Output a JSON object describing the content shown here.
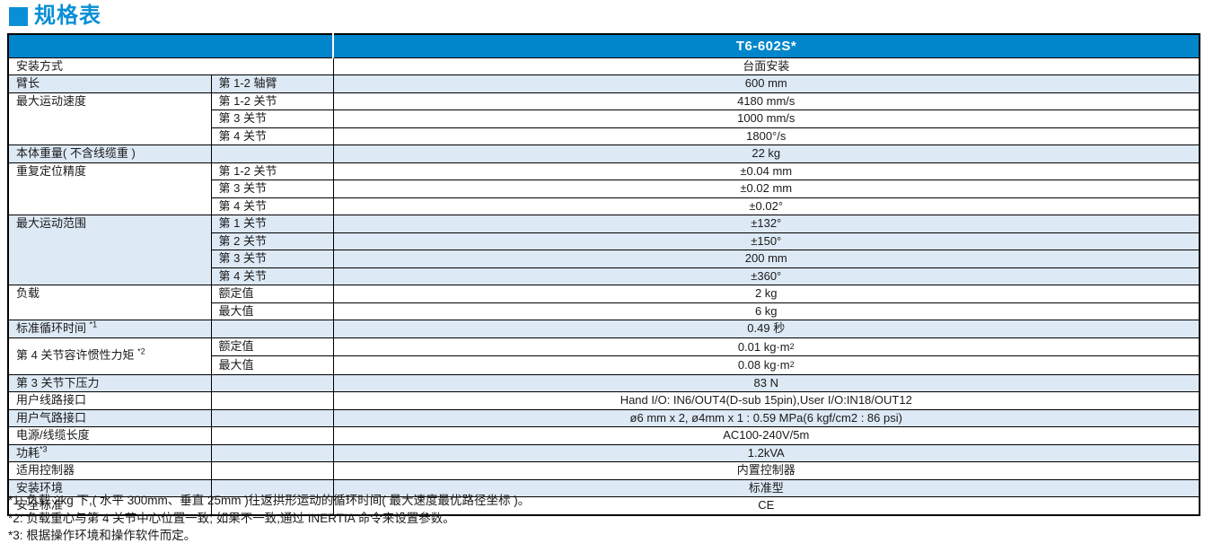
{
  "title": "规格表",
  "table": {
    "model": "T6-602S*",
    "rows": [
      {
        "label": "安装方式",
        "value": "台面安装"
      },
      {
        "label": "臂长",
        "sub": "第 1-2 轴臂",
        "value": "600 mm"
      },
      {
        "label": "最大运动速度",
        "sub": "第 1-2 关节",
        "value": "4180 mm/s"
      },
      {
        "sub": "第 3 关节",
        "value": "1000 mm/s"
      },
      {
        "sub": "第 4 关节",
        "value": "1800°/s"
      },
      {
        "label": "本体重量( 不含线缆重 )",
        "sub": "",
        "value": "22 kg"
      },
      {
        "label": "重复定位精度",
        "sub": "第 1-2 关节",
        "value": "±0.04 mm"
      },
      {
        "sub": "第 3 关节",
        "value": "±0.02 mm"
      },
      {
        "sub": "第 4 关节",
        "value": "±0.02°"
      },
      {
        "label": "最大运动范围",
        "sub": "第 1 关节",
        "value": "±132°"
      },
      {
        "sub": "第 2 关节",
        "value": "±150°"
      },
      {
        "sub": "第 3 关节",
        "value": "200 mm"
      },
      {
        "sub": "第 4 关节",
        "value": "±360°"
      },
      {
        "label": "负载",
        "sub": "额定值",
        "value": "2 kg"
      },
      {
        "sub": "最大值",
        "value": "6 kg"
      },
      {
        "label": "标准循环时间 ",
        "note": "*1",
        "sub": "",
        "value": "0.49 秒"
      },
      {
        "label": "第 4 关节容许惯性力矩 ",
        "note": "*2",
        "sub": "额定值",
        "value": "0.01 kg·m",
        "vsup": "2"
      },
      {
        "sub": "最大值",
        "value": "0.08 kg·m",
        "vsup": "2"
      },
      {
        "label": "第 3 关节下压力",
        "sub": "",
        "value": "83 N"
      },
      {
        "label": "用户线路接口",
        "sub": "",
        "value": "Hand I/O: IN6/OUT4(D-sub 15pin),User I/O:IN18/OUT12"
      },
      {
        "label": "用户气路接口",
        "sub": "",
        "value": "ø6 mm x 2, ø4mm x 1 : 0.59 MPa(6 kgf/cm2 : 86 psi)"
      },
      {
        "label": "电源/线缆长度",
        "sub": "",
        "value": "AC100-240V/5m"
      },
      {
        "label": "功耗",
        "note": "*3",
        "sub": "",
        "value": "1.2kVA"
      },
      {
        "label": "适用控制器",
        "sub": "",
        "value": "内置控制器"
      },
      {
        "label": "安装环境",
        "sub": "",
        "value": "标准型"
      },
      {
        "label": "安全标准",
        "sub": "",
        "value": "CE"
      }
    ]
  },
  "footnotes": [
    "*1: 负载 2kg 下,( 水平 300mm、垂直 25mm )往返拱形运动的循环时间( 最大速度最优路径坐标 )。",
    "*2: 负载重心与第 4 关节中心位置一致; 如果不一致,通过 INERTIA 命令来设置参数。",
    "*3: 根据操作环境和操作软件而定。"
  ],
  "colors": {
    "accent_blue": "#0a8fd6",
    "header_blue": "#0286cb",
    "row_light_blue": "#dde9f5"
  }
}
